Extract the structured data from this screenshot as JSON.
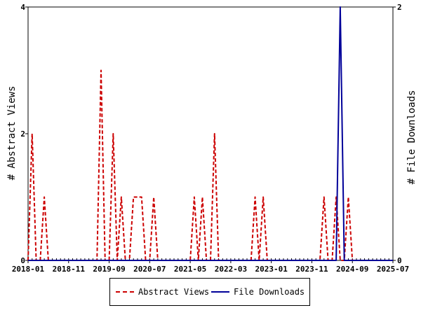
{
  "chart_data": {
    "type": "line",
    "title": "",
    "ylabel": "# Abstract Views",
    "y2label": "# File Downloads",
    "ylim": [
      0,
      4
    ],
    "y2lim": [
      0,
      2
    ],
    "y_ticks": [
      "0",
      "2",
      "4"
    ],
    "y2_ticks": [
      "0",
      "2"
    ],
    "x_tick_labels": [
      "2018-01",
      "2018-11",
      "2019-09",
      "2020-07",
      "2021-05",
      "2022-03",
      "2023-01",
      "2023-11",
      "2024-09",
      "2025-07"
    ],
    "x_start": "2018-01",
    "x_end": "2025-07",
    "grid": false,
    "legend_position": "bottom",
    "series": [
      {
        "name": "Abstract Views",
        "axis": "left",
        "color": "#cc0000",
        "style": "dashed",
        "points": [
          [
            "2018-01",
            0
          ],
          [
            "2018-02",
            2
          ],
          [
            "2018-03",
            0
          ],
          [
            "2018-04",
            0
          ],
          [
            "2018-05",
            1
          ],
          [
            "2018-06",
            0
          ],
          [
            "2019-06",
            0
          ],
          [
            "2019-07",
            3
          ],
          [
            "2019-08",
            0
          ],
          [
            "2019-09",
            0
          ],
          [
            "2019-10",
            2
          ],
          [
            "2019-11",
            0
          ],
          [
            "2019-12",
            1
          ],
          [
            "2020-01",
            0
          ],
          [
            "2020-02",
            0
          ],
          [
            "2020-03",
            1
          ],
          [
            "2020-04",
            1
          ],
          [
            "2020-05",
            1
          ],
          [
            "2020-06",
            0
          ],
          [
            "2020-07",
            0
          ],
          [
            "2020-08",
            1
          ],
          [
            "2020-09",
            0
          ],
          [
            "2021-05",
            0
          ],
          [
            "2021-06",
            1
          ],
          [
            "2021-07",
            0
          ],
          [
            "2021-08",
            1
          ],
          [
            "2021-09",
            0
          ],
          [
            "2021-10",
            0
          ],
          [
            "2021-11",
            2
          ],
          [
            "2021-12",
            0
          ],
          [
            "2022-08",
            0
          ],
          [
            "2022-09",
            1
          ],
          [
            "2022-10",
            0
          ],
          [
            "2022-11",
            1
          ],
          [
            "2022-12",
            0
          ],
          [
            "2024-01",
            0
          ],
          [
            "2024-02",
            1
          ],
          [
            "2024-03",
            0
          ],
          [
            "2024-04",
            0
          ],
          [
            "2024-05",
            1
          ],
          [
            "2024-06",
            0
          ],
          [
            "2024-07",
            0
          ],
          [
            "2024-08",
            1
          ],
          [
            "2024-09",
            0
          ],
          [
            "2025-07",
            0
          ]
        ]
      },
      {
        "name": "File Downloads",
        "axis": "right",
        "color": "#000099",
        "style": "solid",
        "points": [
          [
            "2018-01",
            0
          ],
          [
            "2024-05",
            0
          ],
          [
            "2024-06",
            2
          ],
          [
            "2024-07",
            0
          ],
          [
            "2025-07",
            0
          ]
        ]
      }
    ]
  }
}
